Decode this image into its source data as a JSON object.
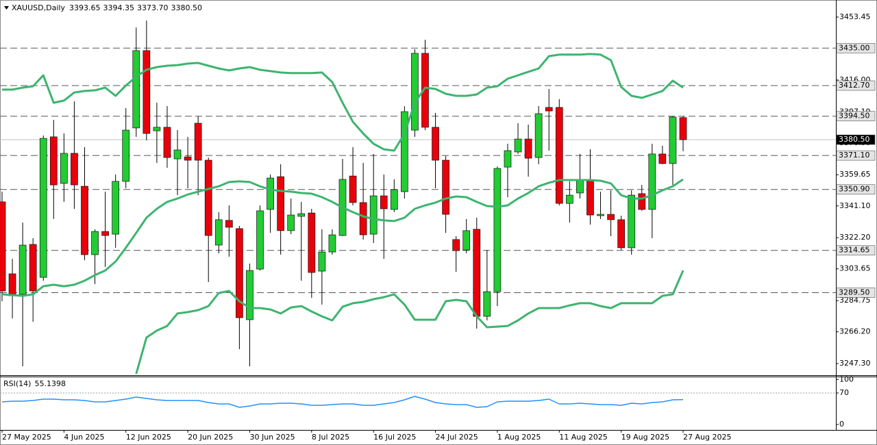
{
  "chart_data": {
    "type": "candlestick",
    "header": {
      "symbol": "XAUUSD,Daily",
      "ohlc": [
        "3393.65",
        "3394.35",
        "3373.70",
        "3380.50"
      ]
    },
    "categories": [
      "27 May 2025",
      null,
      null,
      null,
      null,
      null,
      "4 Jun 2025",
      null,
      null,
      null,
      null,
      null,
      "12 Jun 2025",
      null,
      null,
      null,
      null,
      null,
      "20 Jun 2025",
      null,
      null,
      null,
      null,
      null,
      "30 Jun 2025",
      null,
      null,
      null,
      null,
      null,
      "8 Jul 2025",
      null,
      null,
      null,
      null,
      null,
      "16 Jul 2025",
      null,
      null,
      null,
      null,
      null,
      "24 Jul 2025",
      null,
      null,
      null,
      null,
      null,
      "1 Aug 2025",
      null,
      null,
      null,
      null,
      null,
      "11 Aug 2025",
      null,
      null,
      null,
      null,
      null,
      "19 Aug 2025",
      null,
      null,
      null,
      null,
      null,
      "27 Aug 2025"
    ],
    "open": [
      3343.5,
      3300.7,
      3288.5,
      3318.2,
      3298.6,
      3382.2,
      3354.5,
      3372.4,
      3352.8,
      3312.1,
      3325.9,
      3324.3,
      3355.7,
      3387.5,
      3433.5,
      3385.8,
      3387.9,
      3369.1,
      3370.3,
      3390.3,
      3368.3,
      3317.8,
      3332.5,
      3327.6,
      3273.4,
      3303.5,
      3339.0,
      3358.5,
      3326.4,
      3334.9,
      3336.9,
      3302.3,
      3313.7,
      3323.5,
      3358.9,
      3343.1,
      3324.3,
      3347.1,
      3339.0,
      3349.6,
      3386.2,
      3431.9,
      3387.9,
      3368.3,
      3321.1,
      3314.9,
      3327.2,
      3275.4,
      3290.1,
      3364.2,
      3373.2,
      3380.9,
      3369.9,
      3399.7,
      3399.7,
      3342.6,
      3348.8,
      3356.1,
      3335.3,
      3336.1,
      3332.9,
      3316.2,
      3348.4,
      3339.0,
      3372.0,
      3366.3,
      3393.65
    ],
    "high": [
      3349.6,
      3309.6,
      3331.2,
      3321.9,
      3383.0,
      3392.3,
      3384.2,
      3403.3,
      3376.1,
      3327.2,
      3349.6,
      3359.8,
      3399.3,
      3447.3,
      3451.4,
      3402.5,
      3400.5,
      3386.2,
      3382.2,
      3394.4,
      3369.9,
      3337.4,
      3341.4,
      3329.2,
      3306.8,
      3341.4,
      3359.8,
      3365.9,
      3345.5,
      3343.5,
      3339.4,
      3327.2,
      3327.2,
      3369.1,
      3376.1,
      3366.7,
      3372.0,
      3359.8,
      3356.9,
      3400.5,
      3434.3,
      3440.0,
      3396.4,
      3370.8,
      3323.1,
      3333.3,
      3334.1,
      3314.9,
      3364.6,
      3378.1,
      3390.3,
      3389.5,
      3400.5,
      3410.7,
      3404.6,
      3355.7,
      3372.0,
      3374.8,
      3349.6,
      3350.4,
      3335.3,
      3350.4,
      3353.6,
      3378.1,
      3376.9,
      3394.4,
      3394.35
    ],
    "low": [
      3284.4,
      3274.2,
      3245.7,
      3272.2,
      3296.6,
      3333.3,
      3343.5,
      3339.4,
      3308.8,
      3294.6,
      3304.8,
      3316.2,
      3351.6,
      3382.2,
      3380.1,
      3366.7,
      3363.8,
      3347.5,
      3351.6,
      3347.5,
      3295.8,
      3312.9,
      3310.9,
      3255.9,
      3245.7,
      3302.7,
      3325.1,
      3312.1,
      3324.3,
      3296.6,
      3286.4,
      3282.4,
      3312.1,
      3323.1,
      3341.4,
      3321.1,
      3319.0,
      3309.6,
      3337.4,
      3345.5,
      3382.2,
      3386.2,
      3351.6,
      3325.1,
      3301.9,
      3312.9,
      3268.1,
      3273.0,
      3281.5,
      3346.3,
      3372.0,
      3358.5,
      3365.9,
      3374.0,
      3341.4,
      3331.2,
      3345.5,
      3330.0,
      3333.3,
      3323.1,
      3314.9,
      3312.1,
      3338.2,
      3321.9,
      3365.9,
      3353.6,
      3373.7
    ],
    "close": [
      3290.5,
      3287.6,
      3317.8,
      3290.5,
      3381.3,
      3353.6,
      3372.4,
      3353.6,
      3312.1,
      3325.9,
      3323.5,
      3355.7,
      3386.2,
      3433.5,
      3384.2,
      3387.9,
      3369.9,
      3374.4,
      3368.3,
      3368.3,
      3323.5,
      3332.9,
      3328.4,
      3274.6,
      3302.7,
      3338.2,
      3357.7,
      3326.4,
      3335.7,
      3336.5,
      3301.5,
      3313.7,
      3323.9,
      3356.9,
      3343.1,
      3323.9,
      3347.1,
      3339.4,
      3350.8,
      3397.2,
      3431.9,
      3387.9,
      3368.3,
      3336.1,
      3314.5,
      3326.4,
      3275.4,
      3290.1,
      3363.4,
      3374.0,
      3380.9,
      3369.5,
      3396.0,
      3397.6,
      3342.6,
      3347.5,
      3356.5,
      3335.7,
      3336.1,
      3332.9,
      3316.2,
      3347.5,
      3339.0,
      3372.0,
      3366.3,
      3394.0,
      3380.5
    ],
    "up_color": "#22cc33",
    "down_color": "#e8000b",
    "ylim": [
      3240.4,
      3462.4
    ],
    "yticks": [
      3453.45,
      {
        "value": 3416,
        "label": "3416.00"
      },
      {
        "value": 3397.1,
        "label": "3397.10"
      },
      {
        "value": 3378.5,
        "label": "3378.50"
      },
      3359.65,
      {
        "value": 3341.1,
        "label": "3341.10"
      },
      {
        "value": 3322.2,
        "label": "3322.20"
      },
      3303.65,
      3284.75,
      {
        "value": 3266.2,
        "label": "3266.20"
      },
      {
        "value": 3247.3,
        "label": "3247.30"
      }
    ],
    "levels": [
      {
        "value": 3435,
        "label": "3435.00"
      },
      {
        "value": 3412.7,
        "label": "3412.70"
      },
      {
        "value": 3394.5,
        "label": "3394.50"
      },
      {
        "value": 3371.1,
        "label": "3371.10"
      },
      {
        "value": 3350.9,
        "label": "3350.90"
      },
      3314.65,
      {
        "value": 3289.5,
        "label": "3289.50"
      }
    ],
    "current": {
      "value": 3380.5,
      "label": "3380.50"
    },
    "bands_color": "#3cb46e",
    "bands": [
      {
        "values": [
          3410.3,
          3410.3,
          3411.5,
          3412.3,
          3418.8,
          3402.5,
          3403.8,
          3408.6,
          3409.5,
          3409.9,
          3411.5,
          3406.6,
          3412.7,
          3418.0,
          3422.1,
          3423.7,
          3424.5,
          3424.9,
          3425.8,
          3426.2,
          3424.5,
          3422.9,
          3421.7,
          3422.9,
          3423.7,
          3422.1,
          3421.3,
          3420.5,
          3420.1,
          3420.1,
          3420.1,
          3420.5,
          3414.8,
          3402.5,
          3391.1,
          3384.2,
          3378.1,
          3374.8,
          3374.0,
          3384.2,
          3402.5,
          3411.5,
          3410.7,
          3407.8,
          3406.6,
          3406.6,
          3407.4,
          3411.5,
          3412.3,
          3416.8,
          3418.8,
          3420.9,
          3422.9,
          3430.2,
          3431.1,
          3431.1,
          3431.1,
          3431.5,
          3431.1,
          3427.8,
          3411.9,
          3406.6,
          3405.4,
          3407.4,
          3409.5,
          3415.6,
          3411.5
        ]
      },
      {
        "values": [
          3288.5,
          3288.0,
          3287.6,
          3288.5,
          3293.3,
          3294.2,
          3293.3,
          3294.2,
          3296.6,
          3299.9,
          3302.7,
          3308.0,
          3316.2,
          3325.1,
          3334.1,
          3339.4,
          3343.5,
          3345.5,
          3347.9,
          3349.6,
          3351.2,
          3352.8,
          3355.3,
          3355.7,
          3355.3,
          3352.8,
          3350.8,
          3350.0,
          3349.6,
          3348.8,
          3348.4,
          3346.3,
          3343.5,
          3340.2,
          3337.4,
          3334.9,
          3333.3,
          3332.5,
          3332.1,
          3334.1,
          3339.4,
          3341.4,
          3343.1,
          3345.5,
          3346.7,
          3346.3,
          3343.5,
          3341.0,
          3340.6,
          3341.4,
          3345.5,
          3348.8,
          3352.8,
          3354.9,
          3356.5,
          3356.5,
          3356.5,
          3356.5,
          3356.1,
          3354.5,
          3347.5,
          3345.5,
          3345.5,
          3347.5,
          3350.4,
          3352.8,
          3356.9
        ]
      },
      {
        "values": [
          null,
          null,
          null,
          null,
          null,
          null,
          null,
          null,
          null,
          null,
          null,
          null,
          null,
          3241.2,
          3262.8,
          3266.9,
          3269.7,
          3277.1,
          3277.9,
          3279.1,
          3281.5,
          3289.3,
          3290.5,
          3284.4,
          3280.3,
          3280.3,
          3279.5,
          3277.1,
          3280.7,
          3281.5,
          3278.3,
          3275.4,
          3273.0,
          3281.1,
          3283.2,
          3284.0,
          3285.6,
          3286.8,
          3288.5,
          3282.4,
          3273.4,
          3273.4,
          3273.4,
          3284.4,
          3285.2,
          3284.4,
          3275.4,
          3268.9,
          3269.3,
          3269.7,
          3273.0,
          3277.1,
          3280.3,
          3280.3,
          3280.3,
          3281.9,
          3283.2,
          3283.2,
          3281.5,
          3280.3,
          3283.2,
          3283.2,
          3283.2,
          3283.2,
          3287.6,
          3288.5,
          3302.7
        ]
      }
    ],
    "rsi": {
      "label": "RSI(14)",
      "color": "#1e90ff",
      "values": [
        50.2,
        51.8,
        51.8,
        53.3,
        56.3,
        56.3,
        54.8,
        54.8,
        53.3,
        50.2,
        50.2,
        53.3,
        56.3,
        60.9,
        57.8,
        54.8,
        53.3,
        53.3,
        53.3,
        53.3,
        48.7,
        45.7,
        45.7,
        38.1,
        41.1,
        45.7,
        45.7,
        47.2,
        47.2,
        45.7,
        42.6,
        42.6,
        44.1,
        45.7,
        45.7,
        42.6,
        42.6,
        45.7,
        48.7,
        54.8,
        62.4,
        56.3,
        48.7,
        45.7,
        44.1,
        44.1,
        38.1,
        39.6,
        50.2,
        51.8,
        51.8,
        51.8,
        53.3,
        56.3,
        45.7,
        45.7,
        47.2,
        45.7,
        44.1,
        44.1,
        42.6,
        47.2,
        45.7,
        48.7,
        50.2,
        54.8,
        55.1398
      ],
      "ylim": [
        -12.2,
        105
      ],
      "yticks": [
        0,
        70,
        100
      ],
      "levels": [
        70
      ]
    }
  }
}
